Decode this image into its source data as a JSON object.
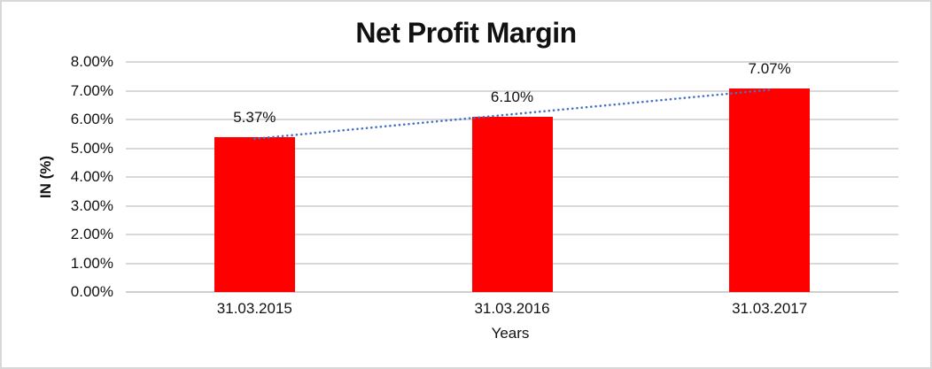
{
  "frame": {
    "background": "#ffffff",
    "border_color": "#d8d8d8"
  },
  "chart_data": {
    "type": "bar",
    "title": "Net Profit Margin",
    "xlabel": "Years",
    "ylabel": "IN (%)",
    "categories": [
      "31.03.2015",
      "31.03.2016",
      "31.03.2017"
    ],
    "values": [
      5.37,
      6.1,
      7.07
    ],
    "data_labels": [
      "5.37%",
      "6.10%",
      "7.07%"
    ],
    "ylim": [
      0,
      8
    ],
    "ytick_step": 1,
    "ytick_labels": [
      "0.00%",
      "1.00%",
      "2.00%",
      "3.00%",
      "4.00%",
      "5.00%",
      "6.00%",
      "7.00%",
      "8.00%"
    ],
    "grid": true,
    "legend": "none",
    "bar_color": "#ff0000",
    "gridline_color": "#d9d9d9",
    "text_color": "#111111",
    "trendline": {
      "type": "linear",
      "style": "dotted",
      "color": "#4472c4"
    }
  }
}
